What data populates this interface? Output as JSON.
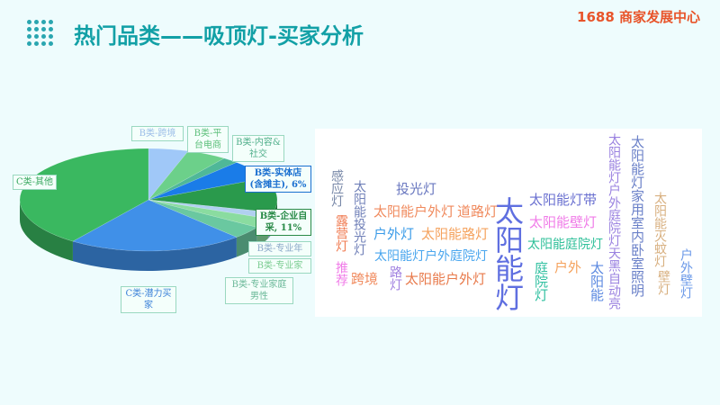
{
  "header": {
    "title": "热门品类——吸顶灯-买家分析",
    "brand": "1688 商家发展中心"
  },
  "chart_data": [
    {
      "type": "pie",
      "title": "",
      "style": "3d",
      "slices": [
        {
          "label": "B类-跨境",
          "value": 5,
          "color": "#a0c8f8"
        },
        {
          "label": "B类-平台电商",
          "value": 5,
          "color": "#6cd08a"
        },
        {
          "label": "B类-内容&社交",
          "value": 2,
          "color": "#4fb898"
        },
        {
          "label": "B类-实体店(含摊主), 6%",
          "value": 6,
          "color": "#1a7ce8"
        },
        {
          "label": "B类-企业自采, 11%",
          "value": 11,
          "color": "#2a9a4c"
        },
        {
          "label": "B类-专业年",
          "value": 2,
          "color": "#b0d0f0"
        },
        {
          "label": "B类-专业家",
          "value": 3,
          "color": "#8adca0"
        },
        {
          "label": "B类-专业家庭男性",
          "value": 4,
          "color": "#6ac8a0"
        },
        {
          "label": "C类-潜力买家",
          "value": 22,
          "color": "#4090e8"
        },
        {
          "label": "C类-其他",
          "value": 40,
          "color": "#3ab860"
        }
      ]
    },
    {
      "type": "wordcloud",
      "words": [
        {
          "text": "太阳能灯",
          "color": "#5f6fe0"
        },
        {
          "text": "太阳能灯户外庭院灯天黑自动亮",
          "color": "#9a82e0"
        },
        {
          "text": "太阳能灯家用室内卧室照明",
          "color": "#6a80c8"
        },
        {
          "text": "太阳能户外灯",
          "color": "#f08a5d"
        },
        {
          "text": "道路灯",
          "color": "#f08a5d"
        },
        {
          "text": "户外灯",
          "color": "#3a9be8"
        },
        {
          "text": "太阳能路灯",
          "color": "#f5a25d"
        },
        {
          "text": "太阳能灯户外庭院灯",
          "color": "#4aa6ee"
        },
        {
          "text": "投光灯",
          "color": "#6a78c0"
        },
        {
          "text": "太阳能灯带",
          "color": "#6a70d0"
        },
        {
          "text": "太阳能壁灯",
          "color": "#f07be8"
        },
        {
          "text": "太阳能庭院灯",
          "color": "#30c09a"
        },
        {
          "text": "感应灯",
          "color": "#7888a8"
        },
        {
          "text": "太阳能投光灯",
          "color": "#7080b8"
        },
        {
          "text": "露营灯",
          "color": "#f07a50"
        },
        {
          "text": "推荐",
          "color": "#f07be8"
        },
        {
          "text": "跨境",
          "color": "#f08a5d"
        },
        {
          "text": "路灯",
          "color": "#a080e0"
        },
        {
          "text": "太阳能户外灯",
          "color": "#e8794a"
        },
        {
          "text": "庭院灯",
          "color": "#30c0a0"
        },
        {
          "text": "户外",
          "color": "#f5a25d"
        },
        {
          "text": "太阳能",
          "color": "#5a88e0"
        },
        {
          "text": "太阳能灭蚊灯",
          "color": "#d8b080"
        },
        {
          "text": "壁灯",
          "color": "#d8b080"
        },
        {
          "text": "户外壁灯",
          "color": "#6a98e8"
        }
      ]
    }
  ]
}
